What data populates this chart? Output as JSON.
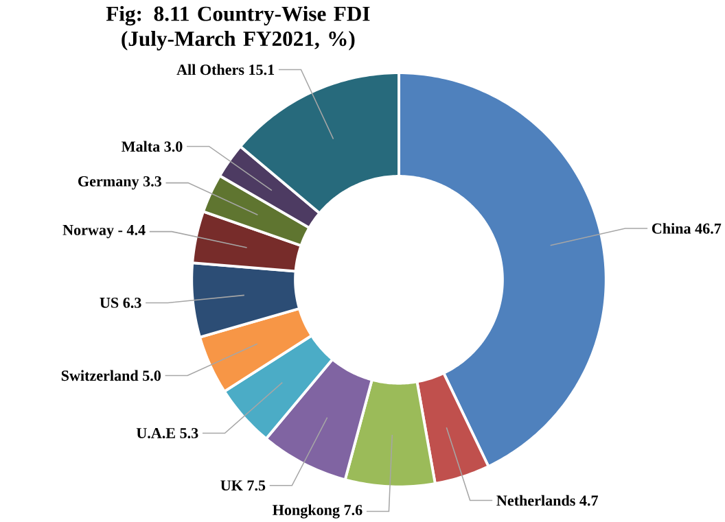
{
  "chart_data": {
    "type": "donut",
    "title": "Fig: 8.11 Country-Wise FDI (July-March FY2021, %)",
    "categories": [
      "China",
      "Netherlands",
      "Hongkong",
      "UK",
      "U.A.E",
      "Switzerland",
      "US",
      "Norway -",
      "Germany",
      "Malta",
      "All Others"
    ],
    "values": [
      46.7,
      4.7,
      7.6,
      7.5,
      5.3,
      5.0,
      6.3,
      4.4,
      3.3,
      3.0,
      15.1
    ],
    "value_labels": [
      "46.7",
      "4.7",
      "7.6",
      "7.5",
      "5.3",
      "5.0",
      "6.3",
      "4.4",
      "3.3",
      "3.0",
      "15.1"
    ],
    "colors": [
      "#4f81bd",
      "#c0504d",
      "#9bbb59",
      "#8064a2",
      "#4bacc6",
      "#f79646",
      "#2c4d75",
      "#772c2a",
      "#5f7530",
      "#4d3b62",
      "#276a7c"
    ]
  }
}
